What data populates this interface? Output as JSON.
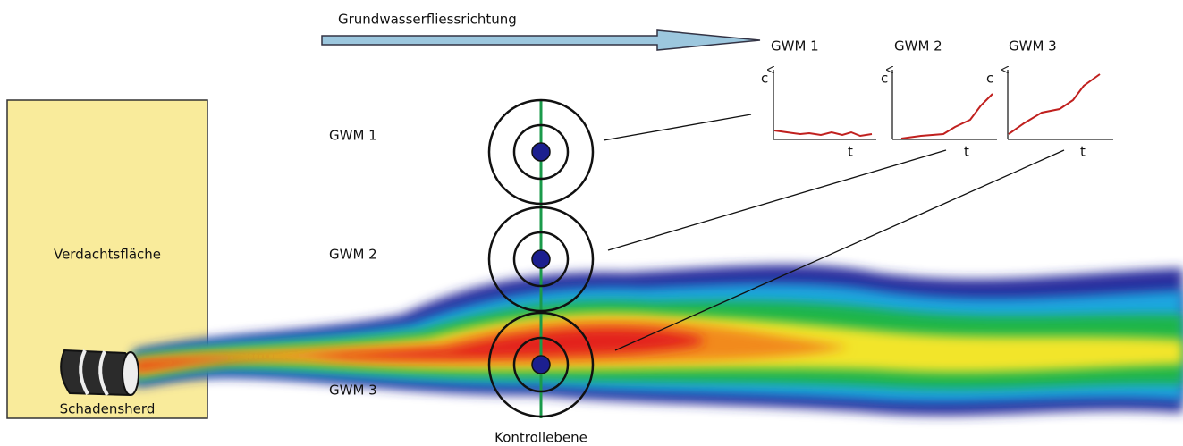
{
  "flow_direction": "Grundwasserfliessrichtung",
  "suspect_area": "Verdachtsfläche",
  "source": "Schadensherd",
  "control_plane": "Kontrollebene",
  "wells": [
    {
      "label": "GWM 1"
    },
    {
      "label": "GWM 2"
    },
    {
      "label": "GWM 3"
    }
  ],
  "graphs": [
    {
      "title": "GWM 1",
      "y_label": "c",
      "x_label": "t"
    },
    {
      "title": "GWM 2",
      "y_label": "c",
      "x_label": "t"
    },
    {
      "title": "GWM 3",
      "y_label": "c",
      "x_label": "t"
    }
  ]
}
